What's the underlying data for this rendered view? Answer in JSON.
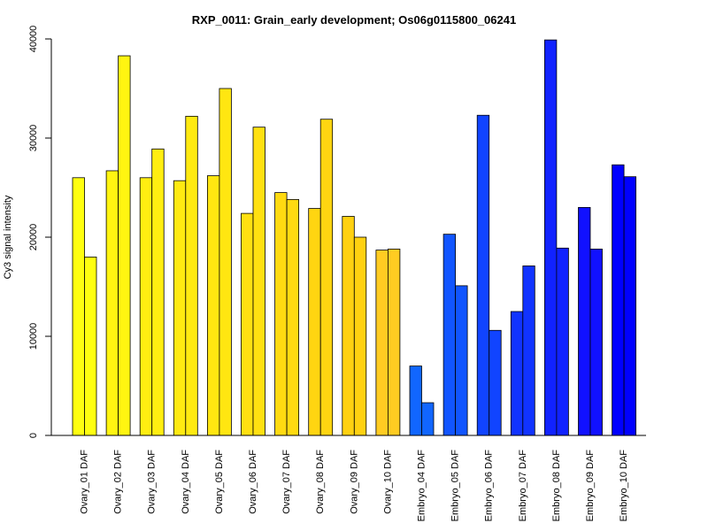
{
  "chart_data": {
    "type": "bar",
    "title": "RXP_0011: Grain_early development; Os06g0115800_06241",
    "xlabel": "",
    "ylabel": "Cy3 signal intensity",
    "ylim": [
      0,
      40000
    ],
    "yticks": [
      0,
      10000,
      20000,
      30000,
      40000
    ],
    "grid": false,
    "legend": "none",
    "categories": [
      "Ovary_01 DAF",
      "Ovary_02 DAF",
      "Ovary_03 DAF",
      "Ovary_04 DAF",
      "Ovary_05 DAF",
      "Ovary_06 DAF",
      "Ovary_07 DAF",
      "Ovary_08 DAF",
      "Ovary_09 DAF",
      "Ovary_10 DAF",
      "Embryo_04 DAF",
      "Embryo_05 DAF",
      "Embryo_06 DAF",
      "Embryo_07 DAF",
      "Embryo_08 DAF",
      "Embryo_09 DAF",
      "Embryo_10 DAF"
    ],
    "series": [
      {
        "values": [
          26000,
          26700,
          26000,
          25700,
          26200,
          22400,
          24500,
          22900,
          22100,
          18700,
          7000,
          20300,
          32300,
          12500,
          39900,
          23000,
          27300
        ]
      },
      {
        "values": [
          18000,
          38300,
          28900,
          32200,
          35000,
          31100,
          23800,
          31900,
          20000,
          18800,
          3300,
          15100,
          10600,
          17100,
          18900,
          18800,
          26100
        ]
      }
    ],
    "colors": [
      "#FFFF11",
      "#FFF511",
      "#FFEE11",
      "#FFEA11",
      "#FFE611",
      "#FFE011",
      "#FFDA11",
      "#FFD511",
      "#FFD111",
      "#FFCC22",
      "#1166FF",
      "#1155FF",
      "#1144FF",
      "#1133FF",
      "#1122FF",
      "#1111FF",
      "#0000FF"
    ]
  }
}
